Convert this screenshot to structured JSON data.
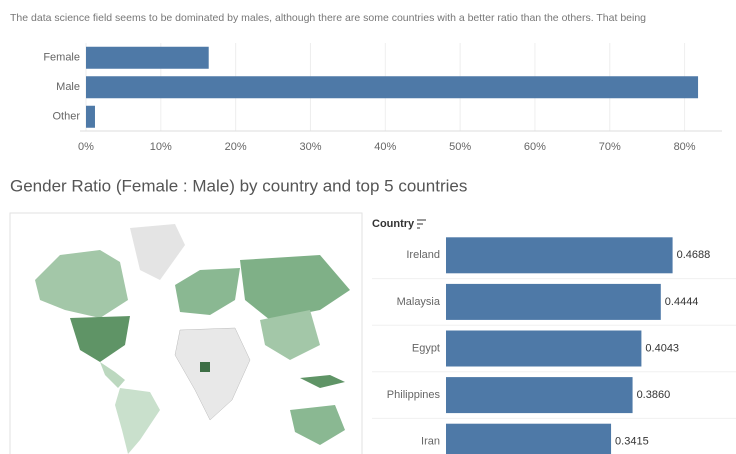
{
  "intro": "The data science field seems to be dominated by males, although there are some countries with a better ratio than the others. That being",
  "chart_data": [
    {
      "type": "hbar",
      "categories": [
        "Female",
        "Male",
        "Other"
      ],
      "values": [
        16.4,
        81.8,
        1.2
      ],
      "color": "#4e79a7",
      "xlim": [
        0,
        85
      ],
      "xticks": [
        {
          "value": 0,
          "label": "0%"
        },
        {
          "value": 10,
          "label": "10%"
        },
        {
          "value": 20,
          "label": "20%"
        },
        {
          "value": 30,
          "label": "30%"
        },
        {
          "value": 40,
          "label": "40%"
        },
        {
          "value": 50,
          "label": "50%"
        },
        {
          "value": 60,
          "label": "60%"
        },
        {
          "value": 70,
          "label": "70%"
        },
        {
          "value": 80,
          "label": "80%"
        }
      ],
      "grid": true
    },
    {
      "type": "hbar",
      "title": "Gender Ratio (Female : Male) by country and top 5 countries",
      "y_label": "Country",
      "categories": [
        "Ireland",
        "Malaysia",
        "Egypt",
        "Philippines",
        "Iran"
      ],
      "values": [
        0.4688,
        0.4444,
        0.4043,
        0.386,
        0.3415
      ],
      "value_labels": [
        "0.4688",
        "0.4444",
        "0.4043",
        "0.3860",
        "0.3415"
      ],
      "color": "#4e79a7",
      "xlim": [
        0,
        0.6
      ]
    }
  ]
}
